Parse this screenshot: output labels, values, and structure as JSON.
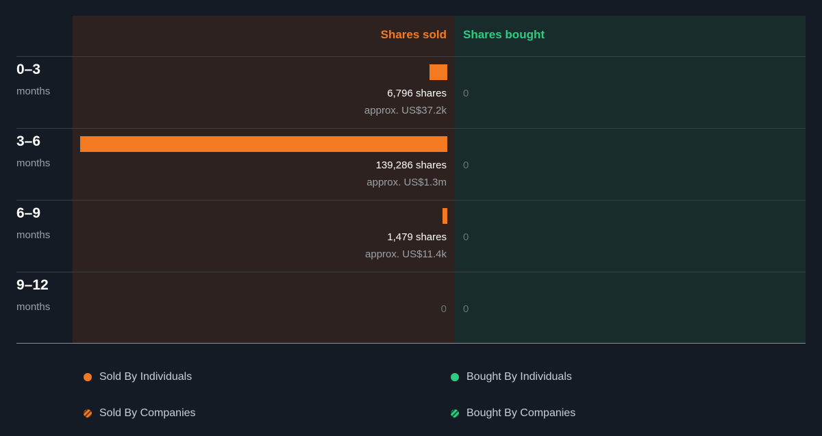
{
  "chart_data": {
    "type": "bar",
    "headers": {
      "sold": "Shares sold",
      "bought": "Shares bought"
    },
    "categories": [
      {
        "period": "0–3",
        "unit": "months"
      },
      {
        "period": "3–6",
        "unit": "months"
      },
      {
        "period": "6–9",
        "unit": "months"
      },
      {
        "period": "9–12",
        "unit": "months"
      }
    ],
    "series": [
      {
        "name": "Shares sold",
        "values": [
          6796,
          139286,
          1479,
          0
        ],
        "labels": [
          "6,796 shares",
          "139,286 shares",
          "1,479 shares",
          "0"
        ],
        "value_labels": [
          "approx. US$37.2k",
          "approx. US$1.3m",
          "approx. US$11.4k",
          ""
        ]
      },
      {
        "name": "Shares bought",
        "values": [
          0,
          0,
          0,
          0
        ],
        "labels": [
          "0",
          "0",
          "0",
          "0"
        ]
      }
    ],
    "legend": [
      {
        "label": "Sold By Individuals",
        "color": "#f47a22",
        "marker": "dot"
      },
      {
        "label": "Bought By Individuals",
        "color": "#2ecc7f",
        "marker": "dot"
      },
      {
        "label": "Sold By Companies",
        "color": "#f47a22",
        "marker": "hatched-dot"
      },
      {
        "label": "Bought By Companies",
        "color": "#2ecc7f",
        "marker": "hatched-dot"
      }
    ],
    "legend_position": "bottom",
    "colors": {
      "sold": "#f47a22",
      "bought": "#2ecc7f"
    }
  }
}
